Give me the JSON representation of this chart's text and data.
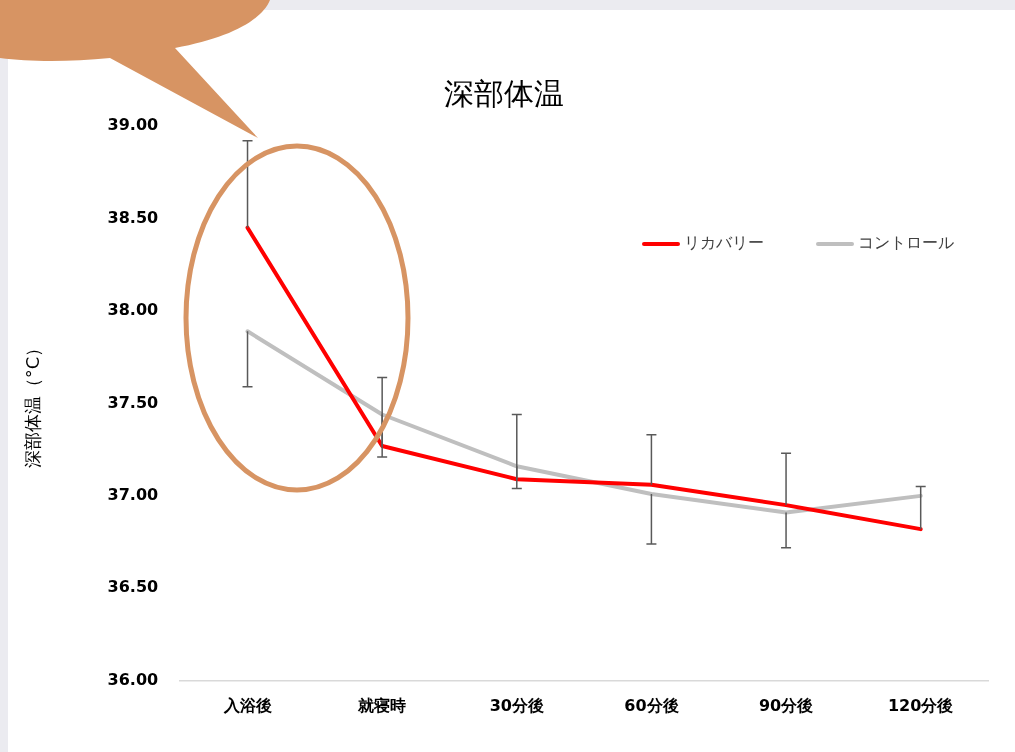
{
  "chart_data": {
    "type": "line",
    "title": "深部体温",
    "ylabel": "深部体温（°C）",
    "categories": [
      "入浴後",
      "就寝時",
      "30分後",
      "60分後",
      "90分後",
      "120分後"
    ],
    "ylim": [
      36,
      39
    ],
    "yticks": [
      {
        "value": 36,
        "label": "36.00"
      },
      {
        "value": 36.5,
        "label": "36.50"
      },
      {
        "value": 37,
        "label": "37.00"
      },
      {
        "value": 37.5,
        "label": "37.50"
      },
      {
        "value": 38,
        "label": "38.00"
      },
      {
        "value": 38.5,
        "label": "38.50"
      },
      {
        "value": 39,
        "label": "39.00"
      }
    ],
    "grid": false,
    "legend": "top right",
    "marker": "none",
    "line_style": "solid",
    "series": [
      {
        "name": "リカバリー",
        "color": "#ff0000",
        "values": [
          38.45,
          37.27,
          37.09,
          37.06,
          36.95,
          36.82
        ],
        "errors": [
          [
            38.45,
            38.92
          ],
          [
            37.27,
            37.64
          ],
          [
            37.09,
            37.44
          ],
          [
            37.06,
            37.33
          ],
          [
            36.95,
            37.23
          ],
          [
            36.82,
            37.05
          ]
        ]
      },
      {
        "name": "コントロール",
        "color": "#bfbfbf",
        "values": [
          37.89,
          37.44,
          37.16,
          37.01,
          36.91,
          37.0
        ],
        "errors": [
          [
            37.59,
            37.89
          ],
          [
            37.21,
            37.44
          ],
          [
            37.04,
            37.16
          ],
          [
            36.74,
            37.01
          ],
          [
            36.72,
            36.91
          ],
          null
        ]
      }
    ]
  }
}
